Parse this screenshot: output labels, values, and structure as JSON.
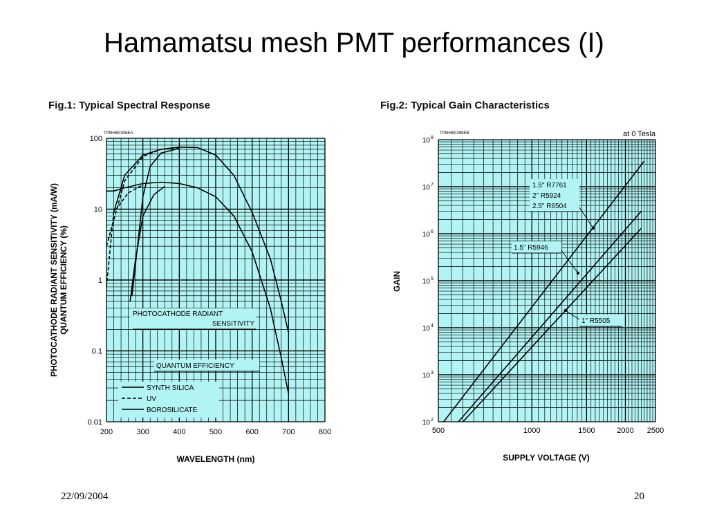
{
  "slide": {
    "title": "Hamamatsu mesh PMT performances (I)",
    "date": "22/09/2004",
    "page_number": "20"
  },
  "colors": {
    "plot_bg": "#b2f4f4",
    "grid": "#000000",
    "curve": "#000000"
  },
  "chart_data": [
    {
      "type": "line",
      "title": "Fig.1:  Typical Spectral Response",
      "code": "TPMHB0306EA",
      "xlabel": "WAVELENGTH (nm)",
      "ylabel_line1": "PHOTOCATHODE RADIANT SENSITIVITY (mA/W)",
      "ylabel_line2": "QUANTUM EFFICIENCY (%)",
      "xlim": [
        200,
        800
      ],
      "ylim": [
        0.01,
        100
      ],
      "y_scale": "log",
      "x_ticks": [
        "200",
        "300",
        "400",
        "500",
        "600",
        "700",
        "800"
      ],
      "y_ticks": [
        "0.01",
        "0.1",
        "1",
        "10",
        "100"
      ],
      "annotations": {
        "sensitivity_line1": "PHOTOCATHODE RADIANT",
        "sensitivity_line2": "SENSITIVITY",
        "qe": "QUANTUM EFFICIENCY"
      },
      "legend": [
        {
          "name": "SYNTH SILICA",
          "style": "solid"
        },
        {
          "name": "UV",
          "style": "dashed"
        },
        {
          "name": "BOROSILICATE",
          "style": "solid"
        }
      ],
      "series": [
        {
          "kind": "sensitivity_silica",
          "style": "solid",
          "points": [
            [
              220,
              9
            ],
            [
              250,
              30
            ],
            [
              300,
              58
            ],
            [
              350,
              70
            ],
            [
              400,
              75
            ],
            [
              450,
              74
            ],
            [
              500,
              58
            ],
            [
              550,
              30
            ],
            [
              600,
              9
            ],
            [
              650,
              2
            ],
            [
              680,
              0.5
            ],
            [
              700,
              0.18
            ]
          ]
        },
        {
          "kind": "sensitivity_uv",
          "style": "dashed",
          "points": [
            [
              200,
              3
            ],
            [
              220,
              7
            ],
            [
              250,
              25
            ],
            [
              300,
              55
            ],
            [
              350,
              70
            ],
            [
              400,
              74
            ]
          ]
        },
        {
          "kind": "sensitivity_borosilicate",
          "style": "solid",
          "points": [
            [
              270,
              0.6
            ],
            [
              290,
              5
            ],
            [
              300,
              15
            ],
            [
              320,
              40
            ],
            [
              350,
              62
            ],
            [
              400,
              72
            ]
          ]
        },
        {
          "kind": "qe_silica",
          "style": "solid",
          "points": [
            [
              200,
              18
            ],
            [
              220,
              18
            ],
            [
              250,
              20
            ],
            [
              300,
              23
            ],
            [
              350,
              24
            ],
            [
              400,
              23
            ],
            [
              450,
              20
            ],
            [
              500,
              15
            ],
            [
              550,
              8
            ],
            [
              600,
              2.5
            ],
            [
              650,
              0.4
            ],
            [
              680,
              0.08
            ],
            [
              700,
              0.025
            ]
          ]
        },
        {
          "kind": "qe_uv",
          "style": "dashed",
          "points": [
            [
              200,
              0.8
            ],
            [
              220,
              9
            ],
            [
              260,
              17
            ],
            [
              300,
              22
            ]
          ]
        },
        {
          "kind": "qe_borosilicate",
          "style": "solid",
          "points": [
            [
              265,
              0.5
            ],
            [
              280,
              2
            ],
            [
              300,
              8
            ],
            [
              330,
              16
            ],
            [
              360,
              21
            ]
          ]
        }
      ]
    },
    {
      "type": "line",
      "title": "Fig.2:  Typical Gain Characteristics",
      "code": "TPMHB0298EB",
      "condition": "at 0 Tesla",
      "xlabel": "SUPPLY VOLTAGE (V)",
      "ylabel": "GAIN",
      "x_scale": "log",
      "y_scale": "log",
      "xlim": [
        500,
        2500
      ],
      "ylim": [
        100,
        100000000
      ],
      "x_ticks": [
        {
          "value": 500,
          "label": "500"
        },
        {
          "value": 1000,
          "label": "1000"
        },
        {
          "value": 1500,
          "label": "1500"
        },
        {
          "value": 2000,
          "label": "2000"
        },
        {
          "value": 2500,
          "label": "2500"
        }
      ],
      "y_ticks": [
        {
          "exp": 2,
          "base": "10",
          "sup": "2"
        },
        {
          "exp": 3,
          "base": "10",
          "sup": "3"
        },
        {
          "exp": 4,
          "base": "10",
          "sup": "4"
        },
        {
          "exp": 5,
          "base": "10",
          "sup": "5"
        },
        {
          "exp": 6,
          "base": "10",
          "sup": "6"
        },
        {
          "exp": 7,
          "base": "10",
          "sup": "7"
        },
        {
          "exp": 8,
          "base": "10",
          "sup": "8"
        }
      ],
      "series": [
        {
          "name_lines": [
            "1.5\" R7761",
            "2\" R5924",
            "2.5\" R6504"
          ],
          "points": [
            [
              520,
              100
            ],
            [
              2300,
              35000000
            ]
          ]
        },
        {
          "name_lines": [
            "1.5\" R5946"
          ],
          "points": [
            [
              580,
              100
            ],
            [
              2250,
              3000000
            ]
          ]
        },
        {
          "name_lines": [
            "1\" R5505"
          ],
          "points": [
            [
              600,
              100
            ],
            [
              2250,
              1300000
            ]
          ]
        }
      ]
    }
  ]
}
